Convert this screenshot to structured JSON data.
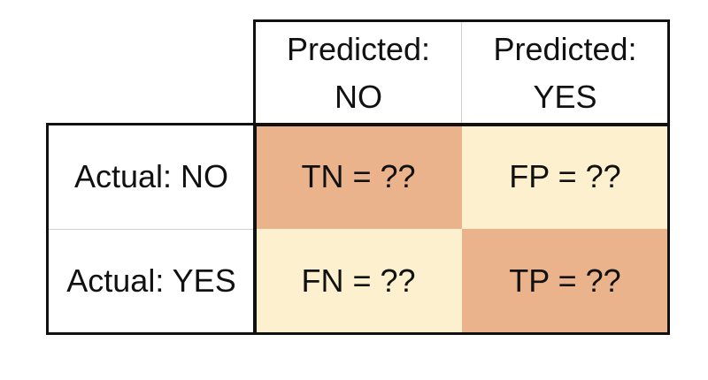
{
  "matrix": {
    "columns": [
      {
        "line1": "Predicted:",
        "line2": "NO"
      },
      {
        "line1": "Predicted:",
        "line2": "YES"
      }
    ],
    "rows": [
      {
        "label": "Actual: NO",
        "cells": [
          "TN = ??",
          "FP = ??"
        ]
      },
      {
        "label": "Actual: YES",
        "cells": [
          "FN = ??",
          "TP = ??"
        ]
      }
    ],
    "colors": {
      "correct": "#eab38c",
      "incorrect": "#fcf0cf",
      "border": "#111111"
    }
  }
}
